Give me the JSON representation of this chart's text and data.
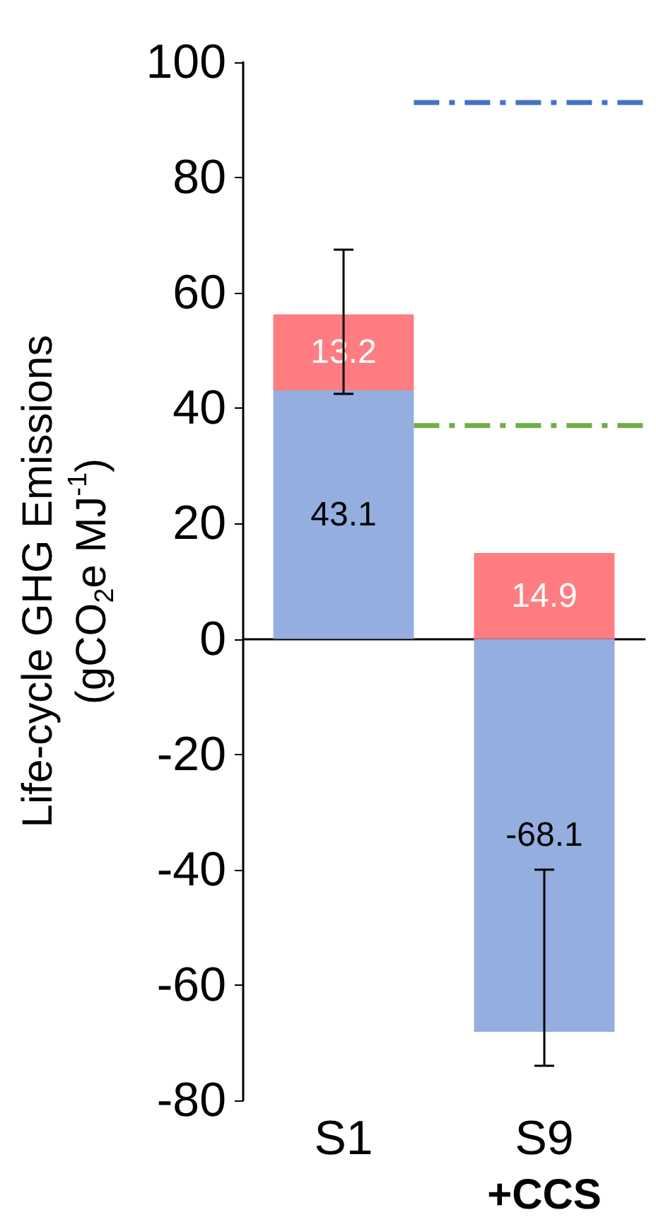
{
  "chart_data": {
    "type": "bar",
    "stacked": true,
    "ylabel": "Life-cycle GHG Emissions\n(gCO$_{2}$e MJ$^{-1}$)",
    "categories": [
      "S1",
      "S9"
    ],
    "series": [
      {
        "color": "#94aedf",
        "values": [
          43.1,
          -68.1
        ]
      },
      {
        "color": "#ff7c80",
        "values": [
          13.2,
          14.9
        ],
        "errors": [
          [
            42.5,
            67.5
          ],
          [
            -74,
            -40
          ]
        ]
      }
    ],
    "data_labels": true,
    "ylim": [
      -80,
      100
    ],
    "yticks": [
      -80,
      -60,
      -40,
      -20,
      0,
      20,
      40,
      60,
      80,
      100
    ],
    "legend": false,
    "ref_lines": [
      {
        "axis": "y",
        "value": 93,
        "color": "#4472c4",
        "line_style": "dashed"
      },
      {
        "axis": "y",
        "value": 37,
        "color": "#70ad47",
        "line_style": "dashed"
      }
    ],
    "annotations": [
      "+CCS"
    ]
  }
}
